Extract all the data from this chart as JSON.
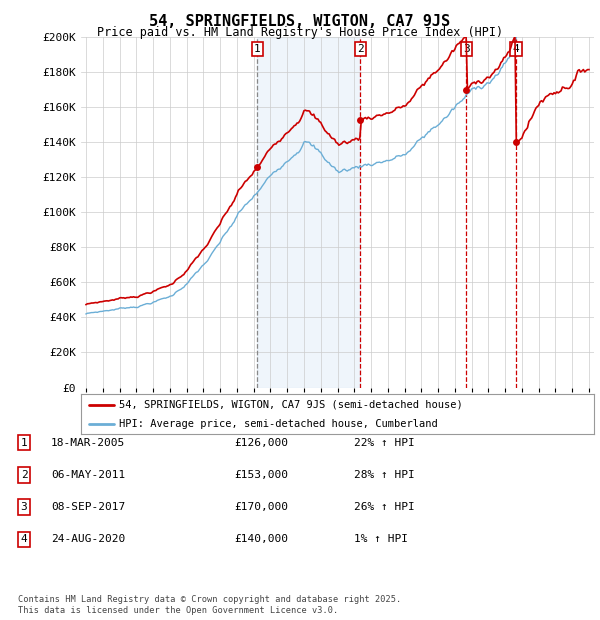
{
  "title": "54, SPRINGFIELDS, WIGTON, CA7 9JS",
  "subtitle": "Price paid vs. HM Land Registry's House Price Index (HPI)",
  "legend_line1": "54, SPRINGFIELDS, WIGTON, CA7 9JS (semi-detached house)",
  "legend_line2": "HPI: Average price, semi-detached house, Cumberland",
  "footer_line1": "Contains HM Land Registry data © Crown copyright and database right 2025.",
  "footer_line2": "This data is licensed under the Open Government Licence v3.0.",
  "transactions": [
    {
      "num": 1,
      "date": "18-MAR-2005",
      "price": 126000,
      "pct": "22%",
      "dir": "↑"
    },
    {
      "num": 2,
      "date": "06-MAY-2011",
      "price": 153000,
      "pct": "28%",
      "dir": "↑"
    },
    {
      "num": 3,
      "date": "08-SEP-2017",
      "price": 170000,
      "pct": "26%",
      "dir": "↑"
    },
    {
      "num": 4,
      "date": "24-AUG-2020",
      "price": 140000,
      "pct": "1%",
      "dir": "↑"
    }
  ],
  "transaction_dates_decimal": [
    2005.21,
    2011.35,
    2017.68,
    2020.65
  ],
  "transaction_prices": [
    126000,
    153000,
    170000,
    140000
  ],
  "hpi_color": "#6baed6",
  "price_color": "#cc0000",
  "background_color": "#ffffff",
  "grid_color": "#cccccc",
  "shade_color": "#ddeeff",
  "ylim": [
    0,
    200000
  ],
  "yticks": [
    0,
    20000,
    40000,
    60000,
    80000,
    100000,
    120000,
    140000,
    160000,
    180000,
    200000
  ],
  "ytick_labels": [
    "£0",
    "£20K",
    "£40K",
    "£60K",
    "£80K",
    "£100K",
    "£120K",
    "£140K",
    "£160K",
    "£180K",
    "£200K"
  ],
  "xmin_year": 1995,
  "xmax_year": 2025,
  "xtick_years": [
    1995,
    1996,
    1997,
    1998,
    1999,
    2000,
    2001,
    2002,
    2003,
    2004,
    2005,
    2006,
    2007,
    2008,
    2009,
    2010,
    2011,
    2012,
    2013,
    2014,
    2015,
    2016,
    2017,
    2018,
    2019,
    2020,
    2021,
    2022,
    2023,
    2024,
    2025
  ]
}
